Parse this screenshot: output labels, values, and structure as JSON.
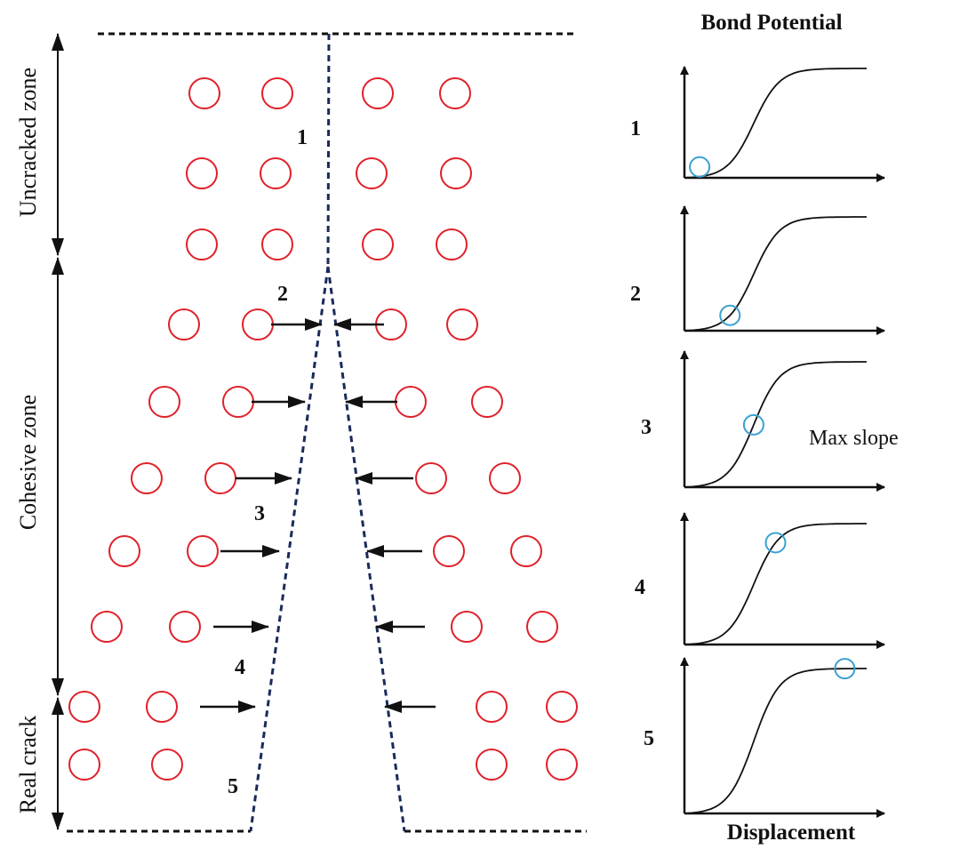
{
  "zones": {
    "uncracked": "Uncracked zone",
    "cohesive": "Cohesive zone",
    "real_crack": "Real crack"
  },
  "stage_labels": [
    "1",
    "2",
    "3",
    "4",
    "5"
  ],
  "plots": {
    "y_axis_title": "Bond Potential",
    "x_axis_title": "Displacement",
    "annotation": "Max slope",
    "items": [
      {
        "label": "1",
        "marker_t": 0.02
      },
      {
        "label": "2",
        "marker_t": 0.25
      },
      {
        "label": "3",
        "marker_t": 0.38
      },
      {
        "label": "4",
        "marker_t": 0.5
      },
      {
        "label": "5",
        "marker_t": 0.88
      }
    ]
  },
  "colors": {
    "particle": "#e0202a",
    "marker": "#3aa0d0",
    "crack": "#1a2a5a",
    "line": "#111111"
  }
}
